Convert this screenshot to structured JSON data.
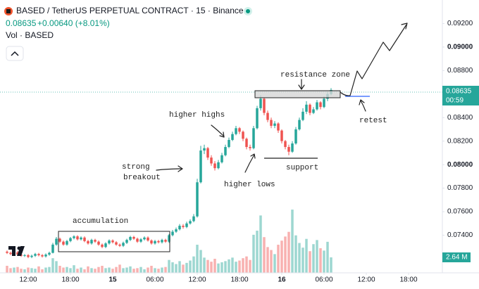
{
  "chart_data": {
    "type": "candlestick",
    "title": "BASED / TetherUS PERPETUAL CONTRACT · 15 · Binance",
    "change_label": "+0.00640 (+8.01%)",
    "volume_title": "Vol · BASED",
    "countdown": "00:59",
    "last_volume_label": "2.64 M",
    "up_color": "#26a69a",
    "down_color": "#ef5350",
    "grid": false,
    "xlim": [
      -4,
      58.8
    ],
    "ylim": [
      0.0708,
      0.094
    ],
    "volume_ylim": [
      0,
      46.6
    ],
    "xticks": [
      {
        "value": 0,
        "label": "12:00"
      },
      {
        "value": 6,
        "label": "18:00"
      },
      {
        "value": 12,
        "label": "15"
      },
      {
        "value": 18,
        "label": "06:00"
      },
      {
        "value": 24,
        "label": "12:00"
      },
      {
        "value": 30,
        "label": "18:00"
      },
      {
        "value": 36,
        "label": "16"
      },
      {
        "value": 42,
        "label": "06:00"
      },
      {
        "value": 48,
        "label": "12:00"
      },
      {
        "value": 54,
        "label": "18:00"
      }
    ],
    "yticks": [
      {
        "value": 0.074,
        "label": "0.07400"
      },
      {
        "value": 0.076,
        "label": "0.07600"
      },
      {
        "value": 0.078,
        "label": "0.07800"
      },
      {
        "value": 0.08,
        "label": "0.08000"
      },
      {
        "value": 0.082,
        "label": "0.08200"
      },
      {
        "value": 0.084,
        "label": "0.08400"
      },
      {
        "value": 0.088,
        "label": "0.08800"
      },
      {
        "value": 0.09,
        "label": "0.09000"
      },
      {
        "value": 0.092,
        "label": "0.09200"
      }
    ],
    "annotations": [
      {
        "text": "resistance zone"
      },
      {
        "text": "higher highs"
      },
      {
        "lines": [
          "strong",
          "breakout"
        ]
      },
      {
        "text": "higher lows"
      },
      {
        "text": "support"
      },
      {
        "text": "accumulation"
      },
      {
        "text": "retest"
      }
    ],
    "x": [
      -3,
      -2.5,
      -2,
      -1.5,
      -1,
      -0.5,
      0,
      0.5,
      1,
      1.5,
      2,
      2.5,
      3,
      3.5,
      4,
      4.5,
      5,
      5.5,
      6,
      6.5,
      7,
      7.5,
      8,
      8.5,
      9,
      9.5,
      10,
      10.5,
      11,
      11.5,
      12,
      12.5,
      13,
      13.5,
      14,
      14.5,
      15,
      15.5,
      16,
      16.5,
      17,
      17.5,
      18,
      18.5,
      19,
      19.5,
      20,
      20.5,
      21,
      21.5,
      22,
      22.5,
      23,
      23.5,
      24,
      24.5,
      25,
      25.5,
      26,
      26.5,
      27,
      27.5,
      28,
      28.5,
      29,
      29.5,
      30,
      30.5,
      31,
      31.5,
      32,
      32.5,
      33,
      33.5,
      34,
      34.5,
      35,
      35.5,
      36,
      36.5,
      37,
      37.5,
      38,
      38.5,
      39,
      39.5,
      40,
      40.5,
      41,
      41.5,
      42,
      42.5,
      43
    ],
    "ohlc": [
      [
        0.0726,
        0.0727,
        0.0724,
        0.0725
      ],
      [
        0.0725,
        0.0726,
        0.0723,
        0.0724
      ],
      [
        0.0724,
        0.07265,
        0.0723,
        0.07255
      ],
      [
        0.07255,
        0.07265,
        0.07225,
        0.07235
      ],
      [
        0.07235,
        0.07245,
        0.07215,
        0.07225
      ],
      [
        0.07225,
        0.0724,
        0.07215,
        0.0723
      ],
      [
        0.0723,
        0.0724,
        0.07205,
        0.07215
      ],
      [
        0.07215,
        0.07235,
        0.07205,
        0.07225
      ],
      [
        0.07225,
        0.0725,
        0.07215,
        0.0724
      ],
      [
        0.0724,
        0.0725,
        0.0722,
        0.0723
      ],
      [
        0.0723,
        0.0724,
        0.0721,
        0.0722
      ],
      [
        0.0722,
        0.07245,
        0.0721,
        0.07235
      ],
      [
        0.07235,
        0.0726,
        0.07225,
        0.0725
      ],
      [
        0.0725,
        0.07335,
        0.07245,
        0.0732
      ],
      [
        0.0732,
        0.07385,
        0.0731,
        0.0737
      ],
      [
        0.0737,
        0.0738,
        0.07335,
        0.07345
      ],
      [
        0.07345,
        0.07355,
        0.0731,
        0.0732
      ],
      [
        0.0732,
        0.0736,
        0.0731,
        0.0735
      ],
      [
        0.0735,
        0.07385,
        0.0734,
        0.07375
      ],
      [
        0.07375,
        0.074,
        0.07365,
        0.0739
      ],
      [
        0.0739,
        0.074,
        0.07355,
        0.07365
      ],
      [
        0.07365,
        0.0739,
        0.07355,
        0.0738
      ],
      [
        0.0738,
        0.0739,
        0.0734,
        0.0735
      ],
      [
        0.0735,
        0.0736,
        0.0732,
        0.0733
      ],
      [
        0.0733,
        0.0737,
        0.0732,
        0.0736
      ],
      [
        0.0736,
        0.0737,
        0.07335,
        0.07345
      ],
      [
        0.07345,
        0.07355,
        0.0731,
        0.0732
      ],
      [
        0.0732,
        0.0733,
        0.0729,
        0.073
      ],
      [
        0.073,
        0.0734,
        0.0729,
        0.0733
      ],
      [
        0.0733,
        0.07365,
        0.0732,
        0.07355
      ],
      [
        0.07355,
        0.07365,
        0.0733,
        0.0734
      ],
      [
        0.0734,
        0.0735,
        0.0731,
        0.0732
      ],
      [
        0.0732,
        0.0733,
        0.073,
        0.0731
      ],
      [
        0.0731,
        0.07345,
        0.073,
        0.07335
      ],
      [
        0.07335,
        0.0737,
        0.07325,
        0.0736
      ],
      [
        0.0736,
        0.07395,
        0.0735,
        0.07385
      ],
      [
        0.07385,
        0.07395,
        0.0736,
        0.0737
      ],
      [
        0.0737,
        0.0738,
        0.07335,
        0.07345
      ],
      [
        0.07345,
        0.07375,
        0.07335,
        0.07365
      ],
      [
        0.07365,
        0.0739,
        0.07355,
        0.0738
      ],
      [
        0.0738,
        0.0739,
        0.07345,
        0.07355
      ],
      [
        0.07355,
        0.07365,
        0.0732,
        0.0733
      ],
      [
        0.0733,
        0.0736,
        0.0732,
        0.0735
      ],
      [
        0.0735,
        0.0736,
        0.0733,
        0.0734
      ],
      [
        0.0734,
        0.0737,
        0.0733,
        0.0736
      ],
      [
        0.0736,
        0.0737,
        0.07335,
        0.07345
      ],
      [
        0.07345,
        0.0741,
        0.07335,
        0.074
      ],
      [
        0.074,
        0.07445,
        0.0739,
        0.0743
      ],
      [
        0.0743,
        0.07465,
        0.0742,
        0.0745
      ],
      [
        0.0745,
        0.07495,
        0.0744,
        0.0748
      ],
      [
        0.0748,
        0.07495,
        0.07455,
        0.0747
      ],
      [
        0.0747,
        0.07515,
        0.0746,
        0.075
      ],
      [
        0.075,
        0.07535,
        0.0749,
        0.0752
      ],
      [
        0.0752,
        0.0758,
        0.0751,
        0.0756
      ],
      [
        0.0756,
        0.0788,
        0.0755,
        0.0785
      ],
      [
        0.0785,
        0.0816,
        0.0784,
        0.0812
      ],
      [
        0.0812,
        0.0817,
        0.0809,
        0.0814
      ],
      [
        0.0814,
        0.0815,
        0.0804,
        0.0806
      ],
      [
        0.0806,
        0.0808,
        0.0799,
        0.0801
      ],
      [
        0.0801,
        0.0803,
        0.0795,
        0.0797
      ],
      [
        0.0797,
        0.0804,
        0.0796,
        0.0802
      ],
      [
        0.0802,
        0.081,
        0.0801,
        0.0808
      ],
      [
        0.0808,
        0.0817,
        0.0807,
        0.0815
      ],
      [
        0.0815,
        0.0823,
        0.0814,
        0.0821
      ],
      [
        0.0821,
        0.0828,
        0.082,
        0.0826
      ],
      [
        0.0826,
        0.0833,
        0.0825,
        0.0831
      ],
      [
        0.0831,
        0.0832,
        0.0826,
        0.0828
      ],
      [
        0.0828,
        0.0829,
        0.082,
        0.0822
      ],
      [
        0.0822,
        0.0823,
        0.0813,
        0.0815
      ],
      [
        0.0815,
        0.0817,
        0.0812,
        0.0814
      ],
      [
        0.0814,
        0.0833,
        0.0813,
        0.0831
      ],
      [
        0.0831,
        0.085,
        0.083,
        0.0848
      ],
      [
        0.0848,
        0.0859,
        0.0846,
        0.0856
      ],
      [
        0.0856,
        0.0857,
        0.0842,
        0.0844
      ],
      [
        0.0844,
        0.0846,
        0.0836,
        0.0838
      ],
      [
        0.0838,
        0.084,
        0.0831,
        0.0833
      ],
      [
        0.0833,
        0.0837,
        0.0831,
        0.0835
      ],
      [
        0.0835,
        0.0836,
        0.0827,
        0.0829
      ],
      [
        0.0829,
        0.083,
        0.0818,
        0.082
      ],
      [
        0.082,
        0.0821,
        0.0813,
        0.0815
      ],
      [
        0.0815,
        0.0817,
        0.0808,
        0.0811
      ],
      [
        0.0811,
        0.082,
        0.081,
        0.0818
      ],
      [
        0.0818,
        0.0832,
        0.0817,
        0.083
      ],
      [
        0.083,
        0.084,
        0.0829,
        0.0838
      ],
      [
        0.0838,
        0.0848,
        0.0837,
        0.0845
      ],
      [
        0.0845,
        0.0854,
        0.0843,
        0.0851
      ],
      [
        0.0851,
        0.0852,
        0.0842,
        0.0844
      ],
      [
        0.0844,
        0.0849,
        0.0843,
        0.0847
      ],
      [
        0.0847,
        0.0855,
        0.0846,
        0.0853
      ],
      [
        0.0853,
        0.0854,
        0.0847,
        0.0849
      ],
      [
        0.0849,
        0.0858,
        0.0848,
        0.0856
      ],
      [
        0.0856,
        0.0862,
        0.0854,
        0.086
      ],
      [
        0.086,
        0.0865,
        0.0859,
        0.08635
      ]
    ],
    "volume": [
      1.2,
      0.8,
      0.9,
      1.0,
      0.7,
      0.6,
      0.9,
      0.8,
      0.7,
      1.1,
      0.6,
      0.9,
      1.0,
      2.5,
      2.0,
      1.2,
      0.9,
      1.0,
      0.8,
      1.3,
      0.7,
      0.9,
      0.6,
      1.1,
      0.8,
      0.7,
      1.0,
      1.2,
      0.8,
      0.9,
      0.7,
      1.0,
      1.4,
      0.8,
      0.9,
      1.1,
      0.7,
      0.8,
      1.0,
      0.6,
      0.9,
      1.2,
      0.8,
      0.7,
      0.9,
      1.0,
      2.2,
      1.8,
      1.5,
      2.0,
      1.4,
      1.7,
      2.1,
      2.8,
      4.8,
      3.9,
      2.6,
      2.2,
      1.9,
      2.4,
      1.6,
      1.8,
      2.0,
      2.3,
      2.6,
      1.9,
      2.1,
      2.5,
      2.8,
      2.2,
      6.5,
      7.2,
      9.8,
      6.1,
      4.4,
      3.9,
      3.2,
      4.8,
      5.5,
      6.2,
      7.0,
      10.8,
      6.4,
      5.1,
      4.3,
      5.8,
      3.7,
      4.9,
      5.6,
      4.2,
      3.8,
      5.3,
      2.64
    ]
  }
}
